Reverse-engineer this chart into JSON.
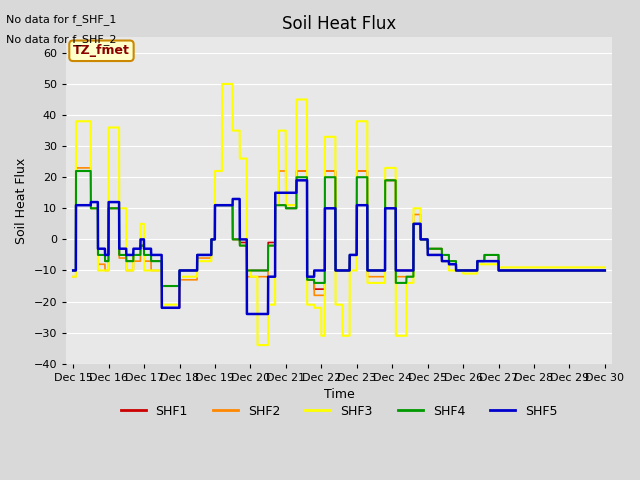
{
  "title": "Soil Heat Flux",
  "ylabel": "Soil Heat Flux",
  "xlabel": "Time",
  "ylim": [
    -40,
    65
  ],
  "background_color": "#d9d9d9",
  "plot_bg_color": "#e8e8e8",
  "no_data_text": [
    "No data for f_SHF_1",
    "No data for f_SHF_2"
  ],
  "tz_label": "TZ_fmet",
  "x_tick_labels": [
    "Dec 15",
    "Dec 16",
    "Dec 17",
    "Dec 18",
    "Dec 19",
    "Dec 20",
    "Dec 21",
    "Dec 22",
    "Dec 23",
    "Dec 24",
    "Dec 25",
    "Dec 26",
    "Dec 27",
    "Dec 28",
    "Dec 29",
    "Dec 30"
  ],
  "legend_entries": [
    {
      "label": "SHF1",
      "color": "#cc0000"
    },
    {
      "label": "SHF2",
      "color": "#ff8800"
    },
    {
      "label": "SHF3",
      "color": "#ffff00"
    },
    {
      "label": "SHF4",
      "color": "#009900"
    },
    {
      "label": "SHF5",
      "color": "#0000cc"
    }
  ],
  "yticks": [
    -40,
    -30,
    -20,
    -10,
    0,
    10,
    20,
    30,
    40,
    50,
    60
  ]
}
